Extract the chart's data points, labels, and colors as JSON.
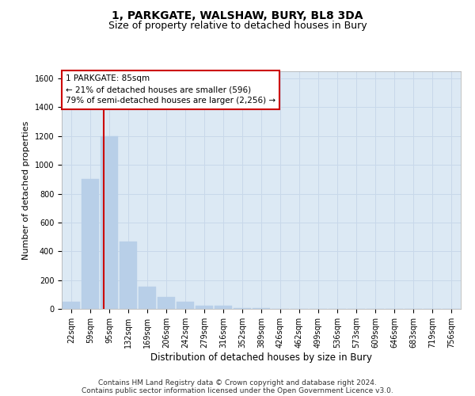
{
  "title": "1, PARKGATE, WALSHAW, BURY, BL8 3DA",
  "subtitle": "Size of property relative to detached houses in Bury",
  "xlabel": "Distribution of detached houses by size in Bury",
  "ylabel": "Number of detached properties",
  "bin_labels": [
    "22sqm",
    "59sqm",
    "95sqm",
    "132sqm",
    "169sqm",
    "206sqm",
    "242sqm",
    "279sqm",
    "316sqm",
    "352sqm",
    "389sqm",
    "426sqm",
    "462sqm",
    "499sqm",
    "536sqm",
    "573sqm",
    "609sqm",
    "646sqm",
    "683sqm",
    "719sqm",
    "756sqm"
  ],
  "bar_heights": [
    50,
    900,
    1200,
    470,
    155,
    85,
    50,
    20,
    20,
    5,
    5,
    0,
    0,
    0,
    0,
    0,
    0,
    0,
    0,
    0,
    0
  ],
  "bar_color": "#b8cfe8",
  "bar_edge_color": "#b8cfe8",
  "grid_color": "#c8d8ea",
  "bg_color": "#dce9f4",
  "vline_x_index": 1.72,
  "vline_color": "#cc0000",
  "annotation_text": "1 PARKGATE: 85sqm\n← 21% of detached houses are smaller (596)\n79% of semi-detached houses are larger (2,256) →",
  "annotation_box_color": "#ffffff",
  "annotation_box_edge": "#cc0000",
  "ylim": [
    0,
    1650
  ],
  "yticks": [
    0,
    200,
    400,
    600,
    800,
    1000,
    1200,
    1400,
    1600
  ],
  "footer_line1": "Contains HM Land Registry data © Crown copyright and database right 2024.",
  "footer_line2": "Contains public sector information licensed under the Open Government Licence v3.0.",
  "title_fontsize": 10,
  "subtitle_fontsize": 9,
  "tick_fontsize": 7,
  "ylabel_fontsize": 8,
  "xlabel_fontsize": 8.5,
  "annot_fontsize": 7.5,
  "footer_fontsize": 6.5
}
